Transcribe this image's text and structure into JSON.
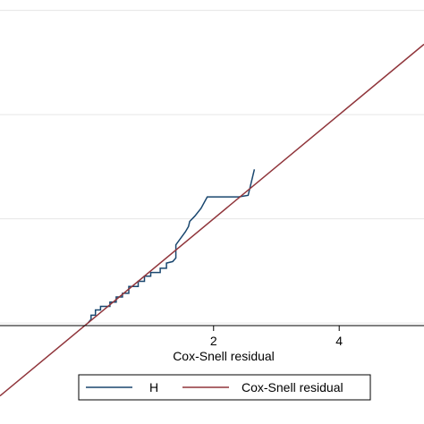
{
  "chart_data": {
    "type": "line",
    "xlabel": "Cox-Snell residual",
    "ylabel": "",
    "xlim": [
      -1.4,
      5.35
    ],
    "ylim": [
      -0.05,
      6.2
    ],
    "x_ticks": [
      2,
      4
    ],
    "x_tick_labels": [
      "2",
      "4"
    ],
    "y_gridlines": [
      0,
      2,
      4,
      6
    ],
    "grid": true,
    "legend_position": "bottom",
    "colors": {
      "H": "#1a476f",
      "Cox-Snell residual": "#90353b"
    },
    "series": [
      {
        "name": "H",
        "x": [
          0.0,
          0.05,
          0.05,
          0.12,
          0.12,
          0.2,
          0.2,
          0.35,
          0.35,
          0.45,
          0.45,
          0.55,
          0.55,
          0.65,
          0.65,
          0.8,
          0.8,
          0.9,
          0.9,
          1.0,
          1.0,
          1.15,
          1.15,
          1.25,
          1.25,
          1.35,
          1.4,
          1.4,
          1.55,
          1.6,
          1.62,
          1.7,
          1.8,
          1.9,
          2.0,
          2.4,
          2.55,
          2.65
        ],
        "y": [
          0.0,
          0.07,
          0.15,
          0.15,
          0.25,
          0.25,
          0.32,
          0.32,
          0.4,
          0.4,
          0.5,
          0.5,
          0.57,
          0.57,
          0.7,
          0.7,
          0.8,
          0.8,
          0.9,
          0.9,
          0.97,
          0.97,
          1.05,
          1.05,
          1.15,
          1.18,
          1.25,
          1.5,
          1.75,
          1.85,
          1.95,
          2.05,
          2.2,
          2.42,
          2.42,
          2.42,
          2.45,
          2.95
        ]
      },
      {
        "name": "Cox-Snell residual",
        "x": [
          -1.4,
          5.35
        ],
        "y": [
          -1.4,
          5.35
        ]
      }
    ]
  }
}
